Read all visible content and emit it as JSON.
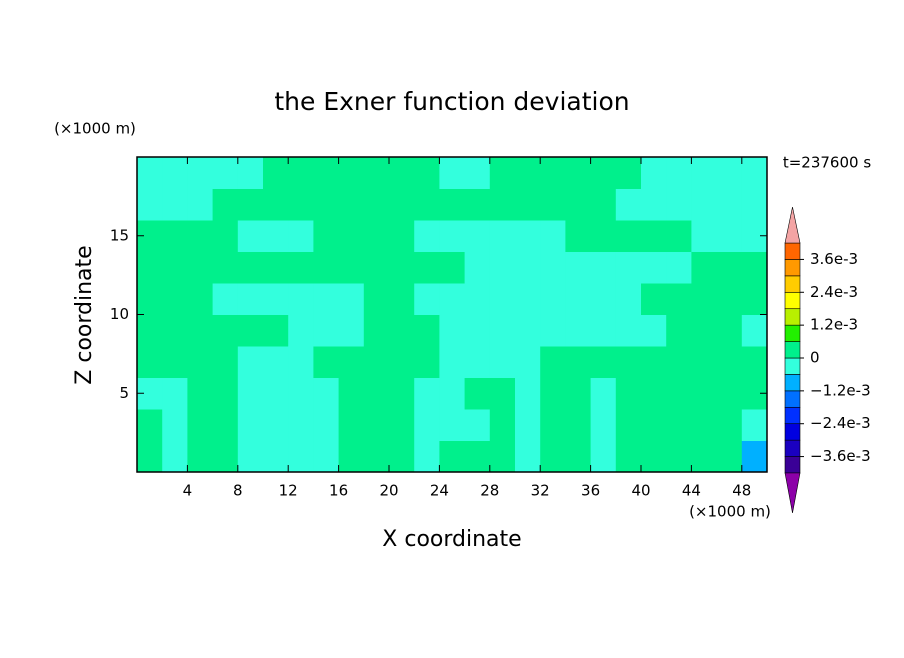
{
  "chart_data": {
    "type": "contour",
    "title": "the Exner function deviation",
    "x_label": "X coordinate",
    "y_label": "Z coordinate",
    "x_unit": "(×1000 m)",
    "y_unit": "(×1000 m)",
    "time_label": "t=237600 s",
    "xlim": [
      0,
      50
    ],
    "ylim": [
      0,
      20
    ],
    "xticks": [
      4,
      8,
      12,
      16,
      20,
      24,
      28,
      32,
      36,
      40,
      44,
      48
    ],
    "yticks": [
      5,
      10,
      15
    ],
    "x": [
      1,
      3,
      5,
      7,
      9,
      11,
      13,
      15,
      17,
      19,
      21,
      23,
      25,
      27,
      29,
      31,
      33,
      35,
      37,
      39,
      41,
      43,
      45,
      47,
      49
    ],
    "y": [
      1,
      3,
      5,
      7,
      9,
      11,
      13,
      15,
      17,
      19
    ],
    "z": [
      [
        0.0003,
        -0.0003,
        0.0003,
        0.0003,
        -0.0003,
        -0.0003,
        -0.0003,
        -0.0003,
        0.0003,
        0.0003,
        0.0003,
        -0.0003,
        0.0003,
        0.0003,
        0.0003,
        -0.0003,
        0.0003,
        0.0003,
        -0.0003,
        0.0003,
        0.0003,
        0.0003,
        0.0003,
        0.0003,
        -0.0009
      ],
      [
        0.0003,
        -0.0003,
        0.0003,
        0.0003,
        -0.0003,
        -0.0003,
        -0.0003,
        -0.0003,
        0.0003,
        0.0003,
        0.0003,
        -0.0003,
        -0.0003,
        -0.0003,
        0.0003,
        -0.0003,
        0.0003,
        0.0003,
        -0.0003,
        0.0003,
        0.0003,
        0.0003,
        0.0003,
        0.0003,
        -0.0003
      ],
      [
        -0.0003,
        -0.0003,
        0.0003,
        0.0003,
        -0.0003,
        -0.0003,
        -0.0003,
        -0.0003,
        0.0003,
        0.0003,
        0.0003,
        -0.0003,
        -0.0003,
        0.0003,
        0.0003,
        -0.0003,
        0.0003,
        0.0003,
        -0.0003,
        0.0003,
        0.0003,
        0.0003,
        0.0003,
        0.0003,
        0.0003
      ],
      [
        0.0003,
        0.0003,
        0.0003,
        0.0003,
        -0.0003,
        -0.0003,
        -0.0003,
        0.0003,
        0.0003,
        0.0003,
        0.0003,
        0.0003,
        -0.0003,
        -0.0003,
        -0.0003,
        -0.0003,
        0.0003,
        0.0003,
        0.0003,
        0.0003,
        0.0003,
        0.0003,
        0.0003,
        0.0003,
        0.0003
      ],
      [
        0.0003,
        0.0003,
        0.0003,
        0.0003,
        0.0003,
        0.0003,
        -0.0003,
        -0.0003,
        -0.0003,
        0.0003,
        0.0003,
        0.0003,
        -0.0003,
        -0.0003,
        -0.0003,
        -0.0003,
        -0.0003,
        -0.0003,
        -0.0003,
        -0.0003,
        -0.0003,
        0.0003,
        0.0003,
        0.0003,
        -0.0003
      ],
      [
        0.0003,
        0.0003,
        0.0003,
        -0.0003,
        -0.0003,
        -0.0003,
        -0.0003,
        -0.0003,
        -0.0003,
        0.0003,
        0.0003,
        -0.0003,
        -0.0003,
        -0.0003,
        -0.0003,
        -0.0003,
        -0.0003,
        -0.0003,
        -0.0003,
        -0.0003,
        0.0003,
        0.0003,
        0.0003,
        0.0003,
        0.0003
      ],
      [
        0.0003,
        0.0003,
        0.0003,
        0.0003,
        0.0003,
        0.0003,
        0.0003,
        0.0003,
        0.0003,
        0.0003,
        0.0003,
        0.0003,
        0.0003,
        -0.0003,
        -0.0003,
        -0.0003,
        -0.0003,
        -0.0003,
        -0.0003,
        -0.0003,
        -0.0003,
        -0.0003,
        0.0003,
        0.0003,
        0.0003
      ],
      [
        0.0003,
        0.0003,
        0.0003,
        0.0003,
        -0.0003,
        -0.0003,
        -0.0003,
        0.0003,
        0.0003,
        0.0003,
        0.0003,
        -0.0003,
        -0.0003,
        -0.0003,
        -0.0003,
        -0.0003,
        -0.0003,
        0.0003,
        0.0003,
        0.0003,
        0.0003,
        0.0003,
        -0.0003,
        -0.0003,
        -0.0003
      ],
      [
        -0.0003,
        -0.0003,
        -0.0003,
        0.0003,
        0.0003,
        0.0003,
        0.0003,
        0.0003,
        0.0003,
        0.0003,
        0.0003,
        0.0003,
        0.0003,
        0.0003,
        0.0003,
        0.0003,
        0.0003,
        0.0003,
        0.0003,
        -0.0003,
        -0.0003,
        -0.0003,
        -0.0003,
        -0.0003,
        -0.0003
      ],
      [
        -0.0003,
        -0.0003,
        -0.0003,
        -0.0003,
        -0.0003,
        0.0003,
        0.0003,
        0.0003,
        0.0003,
        0.0003,
        0.0003,
        0.0003,
        -0.0003,
        -0.0003,
        0.0003,
        0.0003,
        0.0003,
        0.0003,
        0.0003,
        0.0003,
        -0.0003,
        -0.0003,
        -0.0003,
        -0.0003,
        -0.0003
      ]
    ],
    "levels": [
      -0.0042,
      -0.0036,
      -0.003,
      -0.0024,
      -0.0018,
      -0.0012,
      -0.0006,
      0,
      0.0006,
      0.0012,
      0.0018,
      0.0024,
      0.003,
      0.0036,
      0.0042
    ],
    "colors": [
      "#8c00a8",
      "#3a0096",
      "#1a00c0",
      "#0000e0",
      "#0030ff",
      "#0070ff",
      "#00b0ff",
      "#33ffdd",
      "#00f08c",
      "#22f000",
      "#b8f000",
      "#ffff00",
      "#ffcc00",
      "#ff9900",
      "#ff6600",
      "#ff3300",
      "#f4a4a4"
    ],
    "cbar_ticks": [
      {
        "value": 0.0036,
        "label": "3.6e-3"
      },
      {
        "value": 0.0024,
        "label": "2.4e-3"
      },
      {
        "value": 0.0012,
        "label": "1.2e-3"
      },
      0,
      {
        "value": -0.0012,
        "label": "−1.2e-3"
      },
      {
        "value": -0.0024,
        "label": "−2.4e-3"
      },
      {
        "value": -0.0036,
        "label": "−3.6e-3"
      }
    ]
  }
}
